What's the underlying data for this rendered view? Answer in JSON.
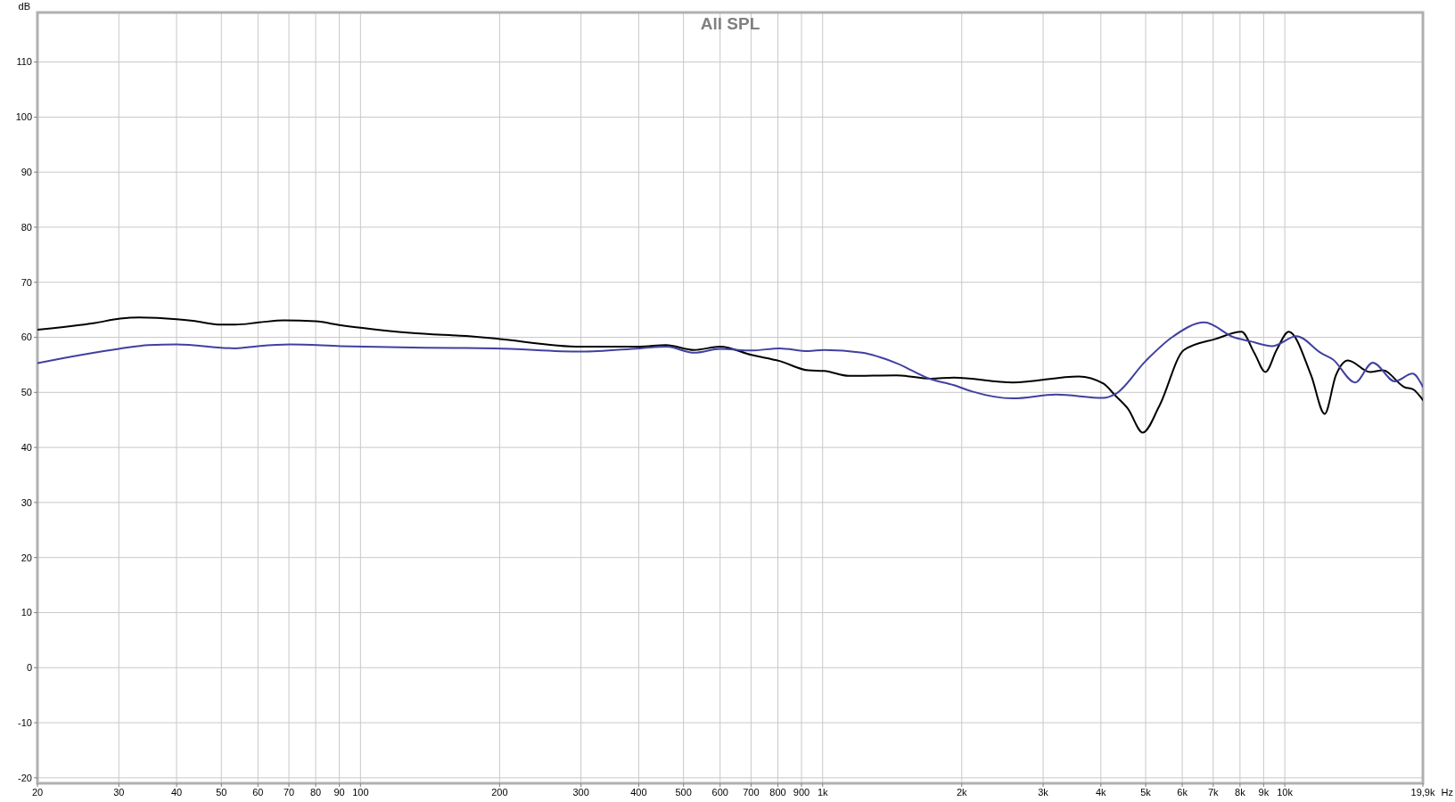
{
  "chart_data": {
    "type": "line",
    "title": "All SPL",
    "xlabel": "Hz",
    "ylabel": "dB",
    "log": "x",
    "grid": true,
    "marker": "none",
    "line_style": "solid",
    "xlim": [
      20,
      19900
    ],
    "ylim": [
      -21,
      119
    ],
    "xticks": [
      20,
      30,
      40,
      50,
      60,
      70,
      80,
      90,
      100,
      200,
      300,
      400,
      500,
      600,
      700,
      800,
      900,
      {
        "value": 1000,
        "label": "1k"
      },
      {
        "value": 2000,
        "label": "2k"
      },
      {
        "value": 3000,
        "label": "3k"
      },
      {
        "value": 4000,
        "label": "4k"
      },
      {
        "value": 5000,
        "label": "5k"
      },
      {
        "value": 6000,
        "label": "6k"
      },
      {
        "value": 7000,
        "label": "7k"
      },
      {
        "value": 8000,
        "label": "8k"
      },
      {
        "value": 9000,
        "label": "9k"
      },
      {
        "value": 10000,
        "label": "10k"
      },
      {
        "value": 19900,
        "label": "19,9k"
      }
    ],
    "yticks": [
      -20,
      -10,
      0,
      10,
      20,
      30,
      40,
      50,
      60,
      70,
      80,
      90,
      100,
      110
    ],
    "series": [
      {
        "color": "#000000",
        "x": [
          20,
          26.6,
          30.2,
          33.2,
          40,
          43.4,
          49.9,
          53.6,
          60.3,
          68.3,
          80,
          90.7,
          101,
          128,
          178,
          195,
          300,
          402,
          458,
          527,
          600,
          701,
          807,
          931,
          1007,
          1141,
          1445,
          1714,
          1924,
          2580,
          3580,
          4050,
          4300,
          4580,
          4930,
          5350,
          6050,
          7080,
          8060,
          8600,
          9080,
          9600,
          10200,
          11400,
          12200,
          12900,
          13700,
          15300,
          16300,
          18200,
          18900,
          19900
        ],
        "values": [
          61.4,
          62.6,
          63.4,
          63.6,
          63.3,
          63,
          62.3,
          62.3,
          62.7,
          63.1,
          62.9,
          62.2,
          61.7,
          60.8,
          60.1,
          59.8,
          58.3,
          58.3,
          58.6,
          57.7,
          58.3,
          56.8,
          55.7,
          54,
          53.9,
          53,
          53.1,
          52.5,
          52.7,
          51.8,
          52.9,
          51.6,
          49.4,
          47,
          42.7,
          47.5,
          57.7,
          59.7,
          61,
          57.1,
          53.7,
          57.7,
          61,
          53.1,
          46.1,
          53.1,
          55.8,
          53.7,
          54,
          50.9,
          50.6,
          48.6
        ]
      },
      {
        "color": "#4040a0",
        "x": [
          20,
          22.7,
          30,
          34.8,
          40,
          53.6,
          60,
          70.5,
          90.7,
          138,
          195,
          300,
          402,
          460,
          527,
          600,
          701,
          807,
          931,
          1007,
          1217,
          1445,
          1714,
          1924,
          2100,
          2580,
          3200,
          4050,
          4300,
          5000,
          5700,
          6700,
          7760,
          8400,
          9400,
          10600,
          12000,
          12700,
          14200,
          15500,
          17300,
          18900,
          19900
        ],
        "values": [
          55.3,
          56.2,
          57.9,
          58.6,
          58.7,
          58,
          58.4,
          58.7,
          58.4,
          58.1,
          58,
          57.4,
          58,
          58.3,
          57.2,
          57.9,
          57.6,
          58,
          57.5,
          57.7,
          57.2,
          55.3,
          52.4,
          51.3,
          50.2,
          48.9,
          49.6,
          49,
          49.7,
          55.7,
          60,
          62.7,
          60,
          59.3,
          58.4,
          60.2,
          57.1,
          56,
          51.8,
          55.4,
          52,
          53.4,
          51
        ]
      }
    ]
  }
}
